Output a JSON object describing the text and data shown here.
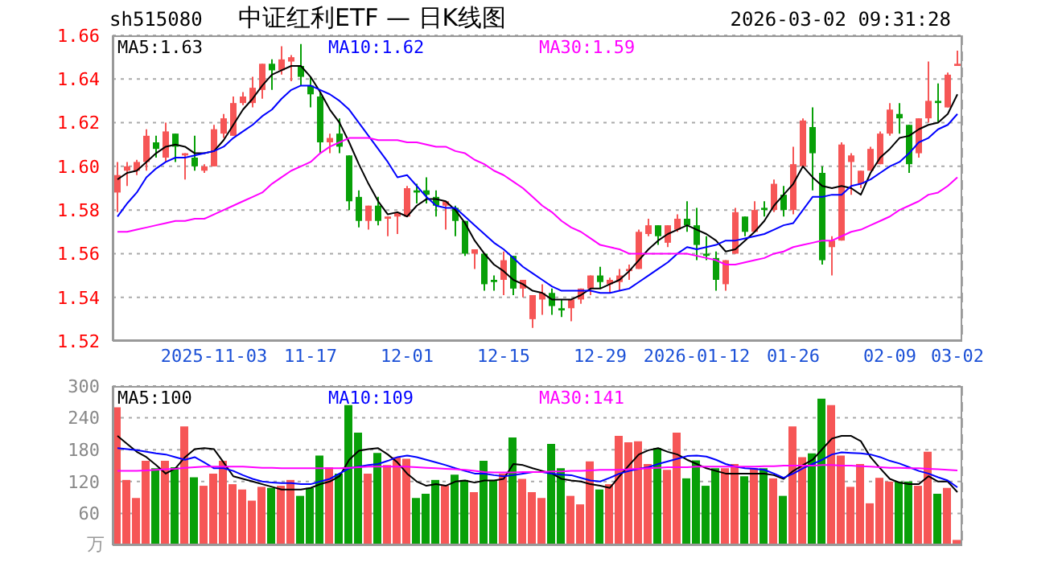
{
  "chart_data": [
    {
      "type": "candlestick",
      "title": "中证红利ETF — 日K线图",
      "annotations": [
        "sh515080",
        "2026-03-02 09:31:28"
      ],
      "categories": [
        null,
        null,
        null,
        null,
        null,
        null,
        null,
        null,
        null,
        null,
        "2025-11-03",
        null,
        null,
        null,
        null,
        null,
        null,
        null,
        null,
        null,
        "11-17",
        null,
        null,
        null,
        null,
        null,
        null,
        null,
        null,
        null,
        "12-01",
        null,
        null,
        null,
        null,
        null,
        null,
        null,
        null,
        null,
        "12-15",
        null,
        null,
        null,
        null,
        null,
        null,
        null,
        null,
        null,
        "12-29",
        null,
        null,
        null,
        null,
        null,
        null,
        null,
        null,
        null,
        "2026-01-12",
        null,
        null,
        null,
        null,
        null,
        null,
        null,
        null,
        null,
        "01-26",
        null,
        null,
        null,
        null,
        null,
        null,
        null,
        null,
        null,
        "02-09",
        null,
        null,
        null,
        null,
        null,
        null,
        "03-02"
      ],
      "ohlc": [
        [
          1.588,
          1.602,
          1.579,
          1.596
        ],
        [
          1.598,
          1.602,
          1.591,
          1.6
        ],
        [
          1.598,
          1.603,
          1.596,
          1.602
        ],
        [
          1.602,
          1.617,
          1.598,
          1.614
        ],
        [
          1.611,
          1.614,
          1.604,
          1.608
        ],
        [
          1.604,
          1.62,
          1.602,
          1.616
        ],
        [
          1.615,
          1.615,
          1.602,
          1.609
        ],
        [
          1.605,
          1.606,
          1.594,
          1.606
        ],
        [
          1.604,
          1.614,
          1.598,
          1.6
        ],
        [
          1.598,
          1.601,
          1.597,
          1.6
        ],
        [
          1.6,
          1.619,
          1.6,
          1.617
        ],
        [
          1.615,
          1.624,
          1.613,
          1.622
        ],
        [
          1.614,
          1.632,
          1.614,
          1.629
        ],
        [
          1.629,
          1.634,
          1.628,
          1.632
        ],
        [
          1.629,
          1.641,
          1.627,
          1.636
        ],
        [
          1.635,
          1.647,
          1.631,
          1.647
        ],
        [
          1.647,
          1.649,
          1.635,
          1.644
        ],
        [
          1.644,
          1.655,
          1.642,
          1.649
        ],
        [
          1.648,
          1.651,
          1.639,
          1.65
        ],
        [
          1.646,
          1.656,
          1.637,
          1.641
        ],
        [
          1.637,
          1.641,
          1.627,
          1.633
        ],
        [
          1.632,
          1.634,
          1.606,
          1.611
        ],
        [
          1.611,
          1.615,
          1.606,
          1.613
        ],
        [
          1.615,
          1.622,
          1.606,
          1.609
        ],
        [
          1.605,
          1.605,
          1.58,
          1.584
        ],
        [
          1.586,
          1.589,
          1.572,
          1.575
        ],
        [
          1.575,
          1.582,
          1.571,
          1.582
        ],
        [
          1.582,
          1.586,
          1.573,
          1.575
        ],
        [
          1.576,
          1.577,
          1.568,
          1.577
        ],
        [
          1.577,
          1.579,
          1.569,
          1.579
        ],
        [
          1.577,
          1.591,
          1.577,
          1.59
        ],
        [
          1.589,
          1.592,
          1.583,
          1.588
        ],
        [
          1.589,
          1.595,
          1.583,
          1.587
        ],
        [
          1.586,
          1.589,
          1.577,
          1.582
        ],
        [
          1.582,
          1.584,
          1.571,
          1.584
        ],
        [
          1.581,
          1.582,
          1.568,
          1.575
        ],
        [
          1.575,
          1.575,
          1.559,
          1.56
        ],
        [
          1.56,
          1.562,
          1.553,
          1.562
        ],
        [
          1.56,
          1.56,
          1.543,
          1.546
        ],
        [
          1.548,
          1.55,
          1.543,
          1.547
        ],
        [
          1.548,
          1.561,
          1.541,
          1.557
        ],
        [
          1.559,
          1.559,
          1.541,
          1.544
        ],
        [
          1.544,
          1.548,
          1.54,
          1.548
        ],
        [
          1.53,
          1.541,
          1.526,
          1.541
        ],
        [
          1.539,
          1.546,
          1.532,
          1.542
        ],
        [
          1.542,
          1.544,
          1.532,
          1.536
        ],
        [
          1.535,
          1.539,
          1.531,
          1.534
        ],
        [
          1.535,
          1.539,
          1.529,
          1.539
        ],
        [
          1.539,
          1.544,
          1.537,
          1.544
        ],
        [
          1.544,
          1.55,
          1.541,
          1.55
        ],
        [
          1.55,
          1.554,
          1.544,
          1.547
        ],
        [
          1.546,
          1.549,
          1.542,
          1.548
        ],
        [
          1.547,
          1.553,
          1.543,
          1.55
        ],
        [
          1.552,
          1.555,
          1.548,
          1.553
        ],
        [
          1.553,
          1.571,
          1.553,
          1.57
        ],
        [
          1.569,
          1.576,
          1.568,
          1.573
        ],
        [
          1.573,
          1.573,
          1.564,
          1.568
        ],
        [
          1.565,
          1.573,
          1.563,
          1.573
        ],
        [
          1.571,
          1.578,
          1.57,
          1.576
        ],
        [
          1.576,
          1.584,
          1.57,
          1.573
        ],
        [
          1.573,
          1.581,
          1.557,
          1.564
        ],
        [
          1.56,
          1.568,
          1.557,
          1.559
        ],
        [
          1.558,
          1.561,
          1.543,
          1.548
        ],
        [
          1.546,
          1.557,
          1.543,
          1.557
        ],
        [
          1.56,
          1.581,
          1.56,
          1.579
        ],
        [
          1.577,
          1.577,
          1.568,
          1.57
        ],
        [
          1.57,
          1.584,
          1.57,
          1.58
        ],
        [
          1.581,
          1.584,
          1.577,
          1.58
        ],
        [
          1.58,
          1.594,
          1.579,
          1.592
        ],
        [
          1.587,
          1.591,
          1.577,
          1.58
        ],
        [
          1.58,
          1.609,
          1.578,
          1.601
        ],
        [
          1.6,
          1.622,
          1.6,
          1.621
        ],
        [
          1.618,
          1.627,
          1.589,
          1.606
        ],
        [
          1.597,
          1.6,
          1.555,
          1.557
        ],
        [
          1.563,
          1.568,
          1.55,
          1.566
        ],
        [
          1.566,
          1.611,
          1.566,
          1.61
        ],
        [
          1.602,
          1.606,
          1.587,
          1.605
        ],
        [
          1.592,
          1.598,
          1.59,
          1.598
        ],
        [
          1.598,
          1.609,
          1.598,
          1.608
        ],
        [
          1.601,
          1.616,
          1.601,
          1.615
        ],
        [
          1.615,
          1.629,
          1.614,
          1.626
        ],
        [
          1.624,
          1.629,
          1.615,
          1.622
        ],
        [
          1.619,
          1.619,
          1.597,
          1.601
        ],
        [
          1.606,
          1.622,
          1.604,
          1.622
        ],
        [
          1.622,
          1.648,
          1.62,
          1.63
        ],
        [
          1.63,
          1.638,
          1.62,
          1.629
        ],
        [
          1.627,
          1.643,
          1.627,
          1.642
        ],
        [
          1.646,
          1.653,
          1.646,
          1.647
        ]
      ],
      "colors": [
        "#f65656",
        "#f65656",
        "#f65656",
        "#f65656",
        "#08a008",
        "#f65656",
        "#08a008",
        "#f65656",
        "#08a008",
        "#f65656",
        "#f65656",
        "#f65656",
        "#f65656",
        "#f65656",
        "#f65656",
        "#f65656",
        "#08a008",
        "#f65656",
        "#f65656",
        "#08a008",
        "#08a008",
        "#08a008",
        "#f65656",
        "#08a008",
        "#08a008",
        "#08a008",
        "#f65656",
        "#08a008",
        "#f65656",
        "#f65656",
        "#f65656",
        "#08a008",
        "#08a008",
        "#08a008",
        "#f65656",
        "#08a008",
        "#08a008",
        "#f65656",
        "#08a008",
        "#08a008",
        "#f65656",
        "#08a008",
        "#f65656",
        "#f65656",
        "#f65656",
        "#08a008",
        "#08a008",
        "#f65656",
        "#f65656",
        "#f65656",
        "#08a008",
        "#f65656",
        "#f65656",
        "#f65656",
        "#f65656",
        "#f65656",
        "#08a008",
        "#f65656",
        "#f65656",
        "#08a008",
        "#08a008",
        "#08a008",
        "#08a008",
        "#f65656",
        "#f65656",
        "#08a008",
        "#f65656",
        "#08a008",
        "#f65656",
        "#08a008",
        "#f65656",
        "#f65656",
        "#08a008",
        "#08a008",
        "#f65656",
        "#f65656",
        "#f65656",
        "#f65656",
        "#f65656",
        "#f65656",
        "#f65656",
        "#08a008",
        "#08a008",
        "#f65656",
        "#f65656",
        "#08a008",
        "#f65656",
        "#f65656"
      ],
      "series": [
        {
          "type": "line",
          "name": "MA5:1.63",
          "color": "#000000",
          "values": [
            1.594,
            1.597,
            1.598,
            1.602,
            1.606,
            1.609,
            1.61,
            1.609,
            1.606,
            1.606,
            1.607,
            1.612,
            1.619,
            1.626,
            1.631,
            1.637,
            1.642,
            1.644,
            1.646,
            1.646,
            1.641,
            1.634,
            1.626,
            1.62,
            1.611,
            1.601,
            1.592,
            1.584,
            1.578,
            1.579,
            1.577,
            1.582,
            1.585,
            1.585,
            1.584,
            1.58,
            1.574,
            1.566,
            1.56,
            1.555,
            1.552,
            1.548,
            1.546,
            1.543,
            1.542,
            1.539,
            1.539,
            1.539,
            1.541,
            1.544,
            1.544,
            1.546,
            1.548,
            1.552,
            1.557,
            1.562,
            1.566,
            1.569,
            1.571,
            1.573,
            1.571,
            1.569,
            1.566,
            1.561,
            1.562,
            1.566,
            1.57,
            1.575,
            1.582,
            1.587,
            1.592,
            1.6,
            1.595,
            1.591,
            1.59,
            1.591,
            1.59,
            1.587,
            1.597,
            1.604,
            1.608,
            1.613,
            1.614,
            1.617,
            1.619,
            1.62,
            1.624,
            1.633
          ]
        },
        {
          "type": "line",
          "name": "MA10:1.62",
          "color": "#0000ff",
          "values": [
            1.577,
            1.583,
            1.588,
            1.595,
            1.599,
            1.602,
            1.604,
            1.604,
            1.605,
            1.606,
            1.607,
            1.609,
            1.613,
            1.616,
            1.619,
            1.623,
            1.626,
            1.631,
            1.635,
            1.637,
            1.637,
            1.635,
            1.633,
            1.63,
            1.626,
            1.62,
            1.614,
            1.608,
            1.602,
            1.595,
            1.596,
            1.591,
            1.586,
            1.582,
            1.581,
            1.581,
            1.577,
            1.573,
            1.569,
            1.565,
            1.562,
            1.558,
            1.554,
            1.551,
            1.548,
            1.545,
            1.543,
            1.543,
            1.543,
            1.543,
            1.542,
            1.542,
            1.543,
            1.544,
            1.547,
            1.55,
            1.553,
            1.556,
            1.56,
            1.563,
            1.562,
            1.563,
            1.564,
            1.566,
            1.566,
            1.567,
            1.568,
            1.569,
            1.571,
            1.573,
            1.574,
            1.58,
            1.586,
            1.586,
            1.587,
            1.587,
            1.591,
            1.592,
            1.594,
            1.597,
            1.6,
            1.602,
            1.606,
            1.611,
            1.613,
            1.617,
            1.619,
            1.624
          ]
        },
        {
          "type": "line",
          "name": "MA30:1.59",
          "color": "#ff00ff",
          "values": [
            1.57,
            1.57,
            1.571,
            1.572,
            1.573,
            1.574,
            1.575,
            1.575,
            1.576,
            1.576,
            1.578,
            1.58,
            1.582,
            1.584,
            1.586,
            1.588,
            1.592,
            1.595,
            1.598,
            1.6,
            1.602,
            1.606,
            1.609,
            1.611,
            1.613,
            1.613,
            1.613,
            1.612,
            1.612,
            1.612,
            1.611,
            1.611,
            1.61,
            1.609,
            1.609,
            1.607,
            1.606,
            1.603,
            1.601,
            1.598,
            1.596,
            1.593,
            1.59,
            1.586,
            1.582,
            1.579,
            1.575,
            1.572,
            1.57,
            1.567,
            1.564,
            1.563,
            1.562,
            1.56,
            1.56,
            1.56,
            1.56,
            1.56,
            1.56,
            1.56,
            1.559,
            1.558,
            1.557,
            1.555,
            1.555,
            1.556,
            1.557,
            1.558,
            1.56,
            1.561,
            1.563,
            1.564,
            1.565,
            1.566,
            1.566,
            1.568,
            1.57,
            1.571,
            1.573,
            1.575,
            1.577,
            1.58,
            1.582,
            1.584,
            1.587,
            1.588,
            1.591,
            1.595
          ]
        }
      ],
      "ylim": [
        1.52,
        1.66
      ],
      "yticks": [
        1.52,
        1.54,
        1.56,
        1.58,
        {
          "value": 1.6,
          "label": "1.60"
        },
        1.62,
        1.64,
        1.66
      ],
      "grid": true,
      "legend": "top"
    },
    {
      "type": "bar",
      "ylabel": "万",
      "categories": [
        null,
        null,
        null,
        null,
        null,
        null,
        null,
        null,
        null,
        null,
        null,
        null,
        null,
        null,
        null,
        null,
        null,
        null,
        null,
        null,
        null,
        null,
        null,
        null,
        null,
        null,
        null,
        null,
        null,
        null,
        null,
        null,
        null,
        null,
        null,
        null,
        null,
        null,
        null,
        null,
        null,
        null,
        null,
        null,
        null,
        null,
        null,
        null,
        null,
        null,
        null,
        null,
        null,
        null,
        null,
        null,
        null,
        null,
        null,
        null,
        null,
        null,
        null,
        null,
        null,
        null,
        null,
        null,
        null,
        null,
        null,
        null,
        null,
        null,
        null,
        null,
        null,
        null,
        null,
        null,
        null,
        null,
        null,
        null,
        null,
        null,
        null,
        null
      ],
      "series": [
        {
          "type": "bar",
          "values": [
            260,
            123,
            89,
            159,
            145,
            159,
            147,
            224,
            128,
            112,
            135,
            159,
            115,
            105,
            84,
            110,
            108,
            112,
            123,
            93,
            108,
            169,
            147,
            135,
            264,
            212,
            135,
            174,
            151,
            166,
            163,
            89,
            97,
            123,
            112,
            133,
            123,
            100,
            159,
            123,
            135,
            203,
            125,
            100,
            89,
            191,
            145,
            93,
            77,
            158,
            105,
            115,
            206,
            194,
            196,
            153,
            183,
            142,
            212,
            126,
            160,
            112,
            145,
            145,
            153,
            130,
            145,
            145,
            126,
            93,
            224,
            166,
            173,
            276,
            264,
            169,
            110,
            153,
            79,
            127,
            120,
            120,
            120,
            112,
            176,
            97,
            108,
            10
          ],
          "colors": [
            "#f65656",
            "#f65656",
            "#f65656",
            "#f65656",
            "#08a008",
            "#f65656",
            "#08a008",
            "#f65656",
            "#08a008",
            "#f65656",
            "#f65656",
            "#f65656",
            "#f65656",
            "#f65656",
            "#f65656",
            "#f65656",
            "#08a008",
            "#f65656",
            "#f65656",
            "#08a008",
            "#08a008",
            "#08a008",
            "#f65656",
            "#08a008",
            "#08a008",
            "#08a008",
            "#f65656",
            "#08a008",
            "#f65656",
            "#f65656",
            "#f65656",
            "#08a008",
            "#08a008",
            "#08a008",
            "#f65656",
            "#08a008",
            "#08a008",
            "#f65656",
            "#08a008",
            "#08a008",
            "#f65656",
            "#08a008",
            "#f65656",
            "#f65656",
            "#f65656",
            "#08a008",
            "#08a008",
            "#f65656",
            "#f65656",
            "#f65656",
            "#08a008",
            "#f65656",
            "#f65656",
            "#f65656",
            "#f65656",
            "#f65656",
            "#08a008",
            "#f65656",
            "#f65656",
            "#08a008",
            "#08a008",
            "#08a008",
            "#08a008",
            "#f65656",
            "#f65656",
            "#08a008",
            "#f65656",
            "#08a008",
            "#f65656",
            "#08a008",
            "#f65656",
            "#f65656",
            "#08a008",
            "#08a008",
            "#f65656",
            "#f65656",
            "#f65656",
            "#f65656",
            "#f65656",
            "#f65656",
            "#f65656",
            "#08a008",
            "#08a008",
            "#f65656",
            "#f65656",
            "#08a008",
            "#f65656",
            "#f65656"
          ]
        },
        {
          "type": "line",
          "name": "MA5:100",
          "color": "#000000",
          "values": [
            206,
            191,
            176,
            166,
            151,
            135,
            145,
            166,
            181,
            183,
            181,
            156,
            130,
            125,
            120,
            115,
            110,
            105,
            105,
            105,
            108,
            115,
            120,
            130,
            161,
            178,
            181,
            183,
            171,
            156,
            135,
            120,
            112,
            115,
            112,
            120,
            122,
            118,
            122,
            122,
            125,
            153,
            151,
            145,
            140,
            135,
            125,
            122,
            120,
            115,
            112,
            108,
            130,
            151,
            171,
            179,
            183,
            176,
            171,
            161,
            153,
            145,
            140,
            135,
            135,
            135,
            135,
            135,
            132,
            125,
            140,
            151,
            161,
            181,
            201,
            206,
            206,
            196,
            166,
            145,
            125,
            118,
            115,
            115,
            130,
            120,
            120,
            100
          ]
        },
        {
          "type": "line",
          "name": "MA10:109",
          "color": "#0000ff",
          "values": [
            183,
            181,
            179,
            176,
            173,
            171,
            166,
            161,
            166,
            156,
            145,
            145,
            140,
            132,
            125,
            120,
            118,
            117,
            117,
            115,
            115,
            120,
            125,
            135,
            145,
            148,
            151,
            153,
            159,
            166,
            169,
            166,
            161,
            156,
            151,
            145,
            140,
            135,
            135,
            132,
            130,
            132,
            135,
            138,
            138,
            135,
            133,
            132,
            127,
            122,
            120,
            127,
            135,
            140,
            144,
            147,
            153,
            158,
            163,
            168,
            169,
            167,
            161,
            153,
            148,
            145,
            144,
            142,
            135,
            127,
            135,
            145,
            153,
            161,
            171,
            175,
            174,
            173,
            171,
            166,
            159,
            154,
            147,
            140,
            135,
            128,
            122,
            109
          ]
        },
        {
          "type": "line",
          "name": "MA30:141",
          "color": "#ff00ff",
          "values": [
            140,
            140,
            140,
            141,
            142,
            143,
            144,
            146,
            147,
            148,
            148,
            148,
            148,
            148,
            147,
            146,
            146,
            145,
            145,
            145,
            145,
            145,
            145,
            145,
            146,
            147,
            148,
            148,
            148,
            148,
            148,
            147,
            146,
            145,
            144,
            143,
            142,
            140,
            138,
            137,
            137,
            137,
            138,
            138,
            138,
            139,
            139,
            140,
            140,
            141,
            142,
            142,
            142,
            143,
            144,
            145,
            146,
            147,
            147,
            147,
            148,
            148,
            148,
            148,
            148,
            148,
            148,
            149,
            149,
            150,
            150,
            150,
            150,
            151,
            151,
            150,
            150,
            149,
            148,
            147,
            146,
            146,
            145,
            145,
            144,
            143,
            142,
            141
          ]
        }
      ],
      "ylim": [
        0,
        300
      ],
      "yticks": [
        60,
        120,
        180,
        240,
        300
      ],
      "grid": true,
      "legend": "top",
      "tick_labels": "y"
    }
  ]
}
